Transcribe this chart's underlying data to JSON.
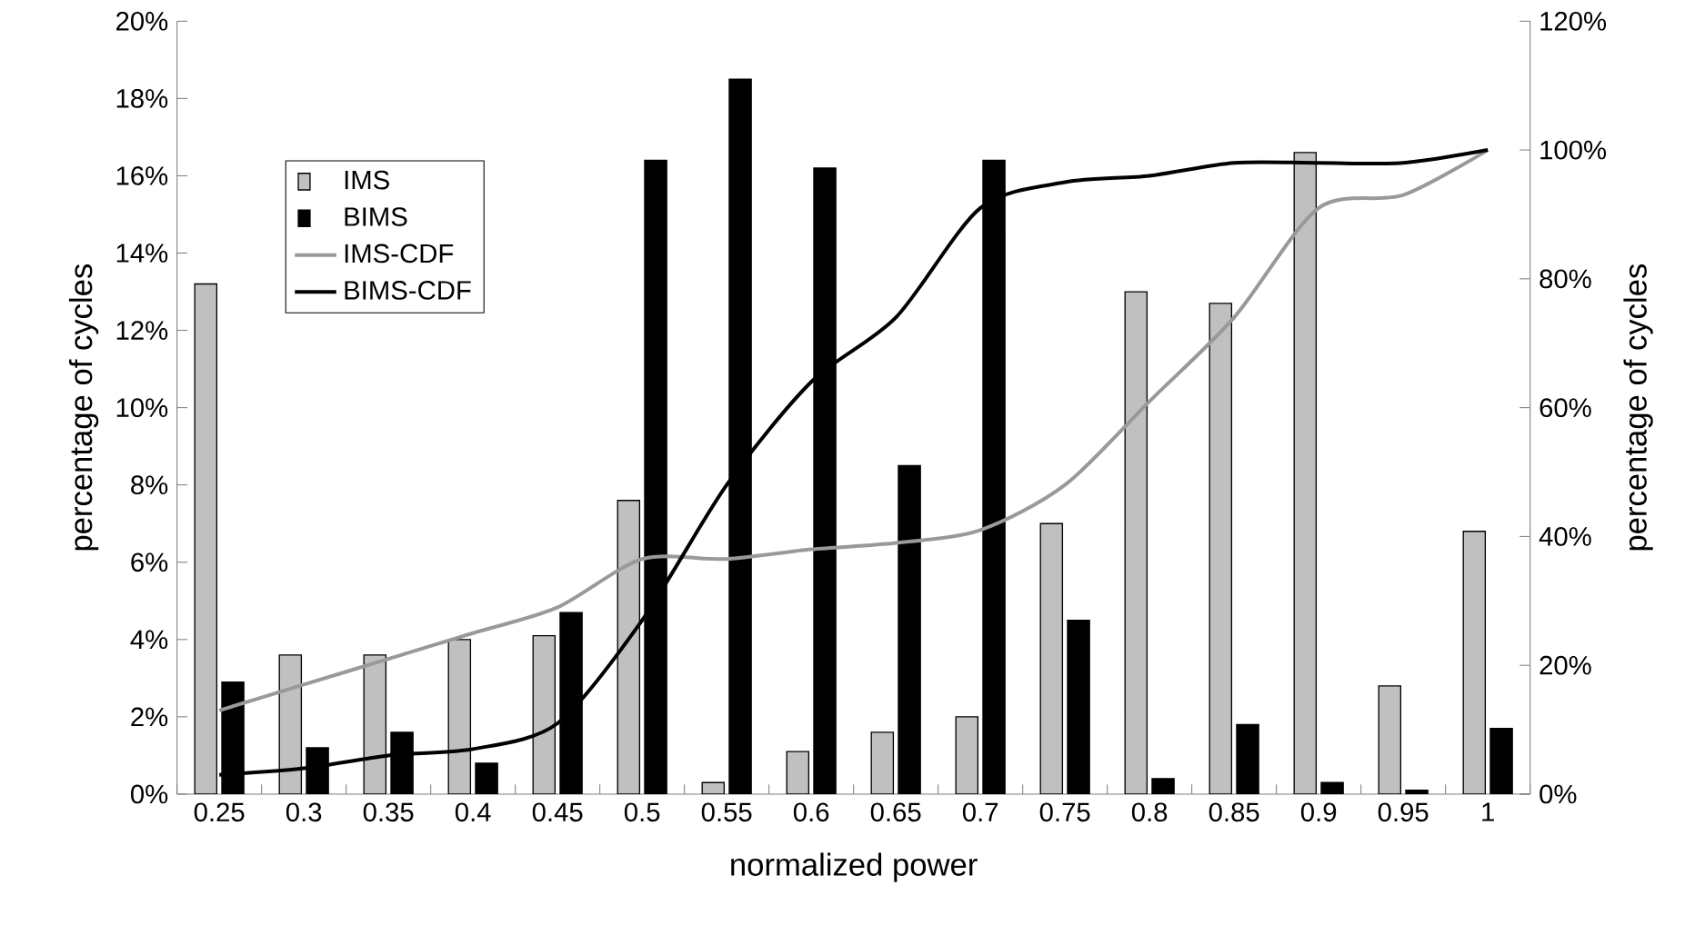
{
  "chart_data": {
    "type": "bar",
    "xlabel": "normalized power",
    "ylabel": "percentage of cycles",
    "y2label": "percentage of cycles",
    "categories": [
      "0.25",
      "0.3",
      "0.35",
      "0.4",
      "0.45",
      "0.5",
      "0.55",
      "0.6",
      "0.65",
      "0.7",
      "0.75",
      "0.8",
      "0.85",
      "0.9",
      "0.95",
      "1"
    ],
    "series": [
      {
        "name": "IMS",
        "color": "#c0c0c0",
        "values": [
          13.2,
          3.6,
          3.6,
          4.0,
          4.1,
          7.6,
          0.3,
          1.1,
          1.6,
          2.0,
          7.0,
          13.0,
          12.7,
          16.6,
          2.8,
          6.8
        ]
      },
      {
        "name": "BIMS",
        "color": "#000000",
        "values": [
          2.9,
          1.2,
          1.6,
          0.8,
          4.7,
          16.4,
          18.5,
          16.2,
          8.5,
          16.4,
          4.5,
          0.4,
          1.8,
          0.3,
          0.1,
          1.7
        ]
      },
      {
        "name": "IMS-CDF",
        "type": "line",
        "axis": "y2",
        "color": "#999999",
        "values": [
          13,
          17,
          21,
          25,
          29,
          36.5,
          36.5,
          38,
          39,
          41,
          48,
          61,
          74,
          91,
          93,
          100
        ]
      },
      {
        "name": "BIMS-CDF",
        "type": "line",
        "axis": "y2",
        "color": "#000000",
        "values": [
          3,
          4,
          6,
          7,
          11,
          27,
          48,
          64,
          74,
          91,
          95,
          96,
          98,
          98,
          98,
          100
        ]
      }
    ],
    "ylim": [
      0,
      20
    ],
    "yticks": [
      {
        "value": 0,
        "label": "0%"
      },
      {
        "value": 2,
        "label": "2%"
      },
      {
        "value": 4,
        "label": "4%"
      },
      {
        "value": 6,
        "label": "6%"
      },
      {
        "value": 8,
        "label": "8%"
      },
      {
        "value": 10,
        "label": "10%"
      },
      {
        "value": 12,
        "label": "12%"
      },
      {
        "value": 14,
        "label": "14%"
      },
      {
        "value": 16,
        "label": "16%"
      },
      {
        "value": 18,
        "label": "18%"
      },
      {
        "value": 20,
        "label": "20%"
      }
    ],
    "y2lim": [
      0,
      120
    ],
    "y2ticks": [
      {
        "value": 0,
        "label": "0%"
      },
      {
        "value": 20,
        "label": "20%"
      },
      {
        "value": 40,
        "label": "40%"
      },
      {
        "value": 60,
        "label": "60%"
      },
      {
        "value": 80,
        "label": "80%"
      },
      {
        "value": 100,
        "label": "100%"
      },
      {
        "value": 120,
        "label": "120%"
      }
    ],
    "legend": "top left"
  }
}
